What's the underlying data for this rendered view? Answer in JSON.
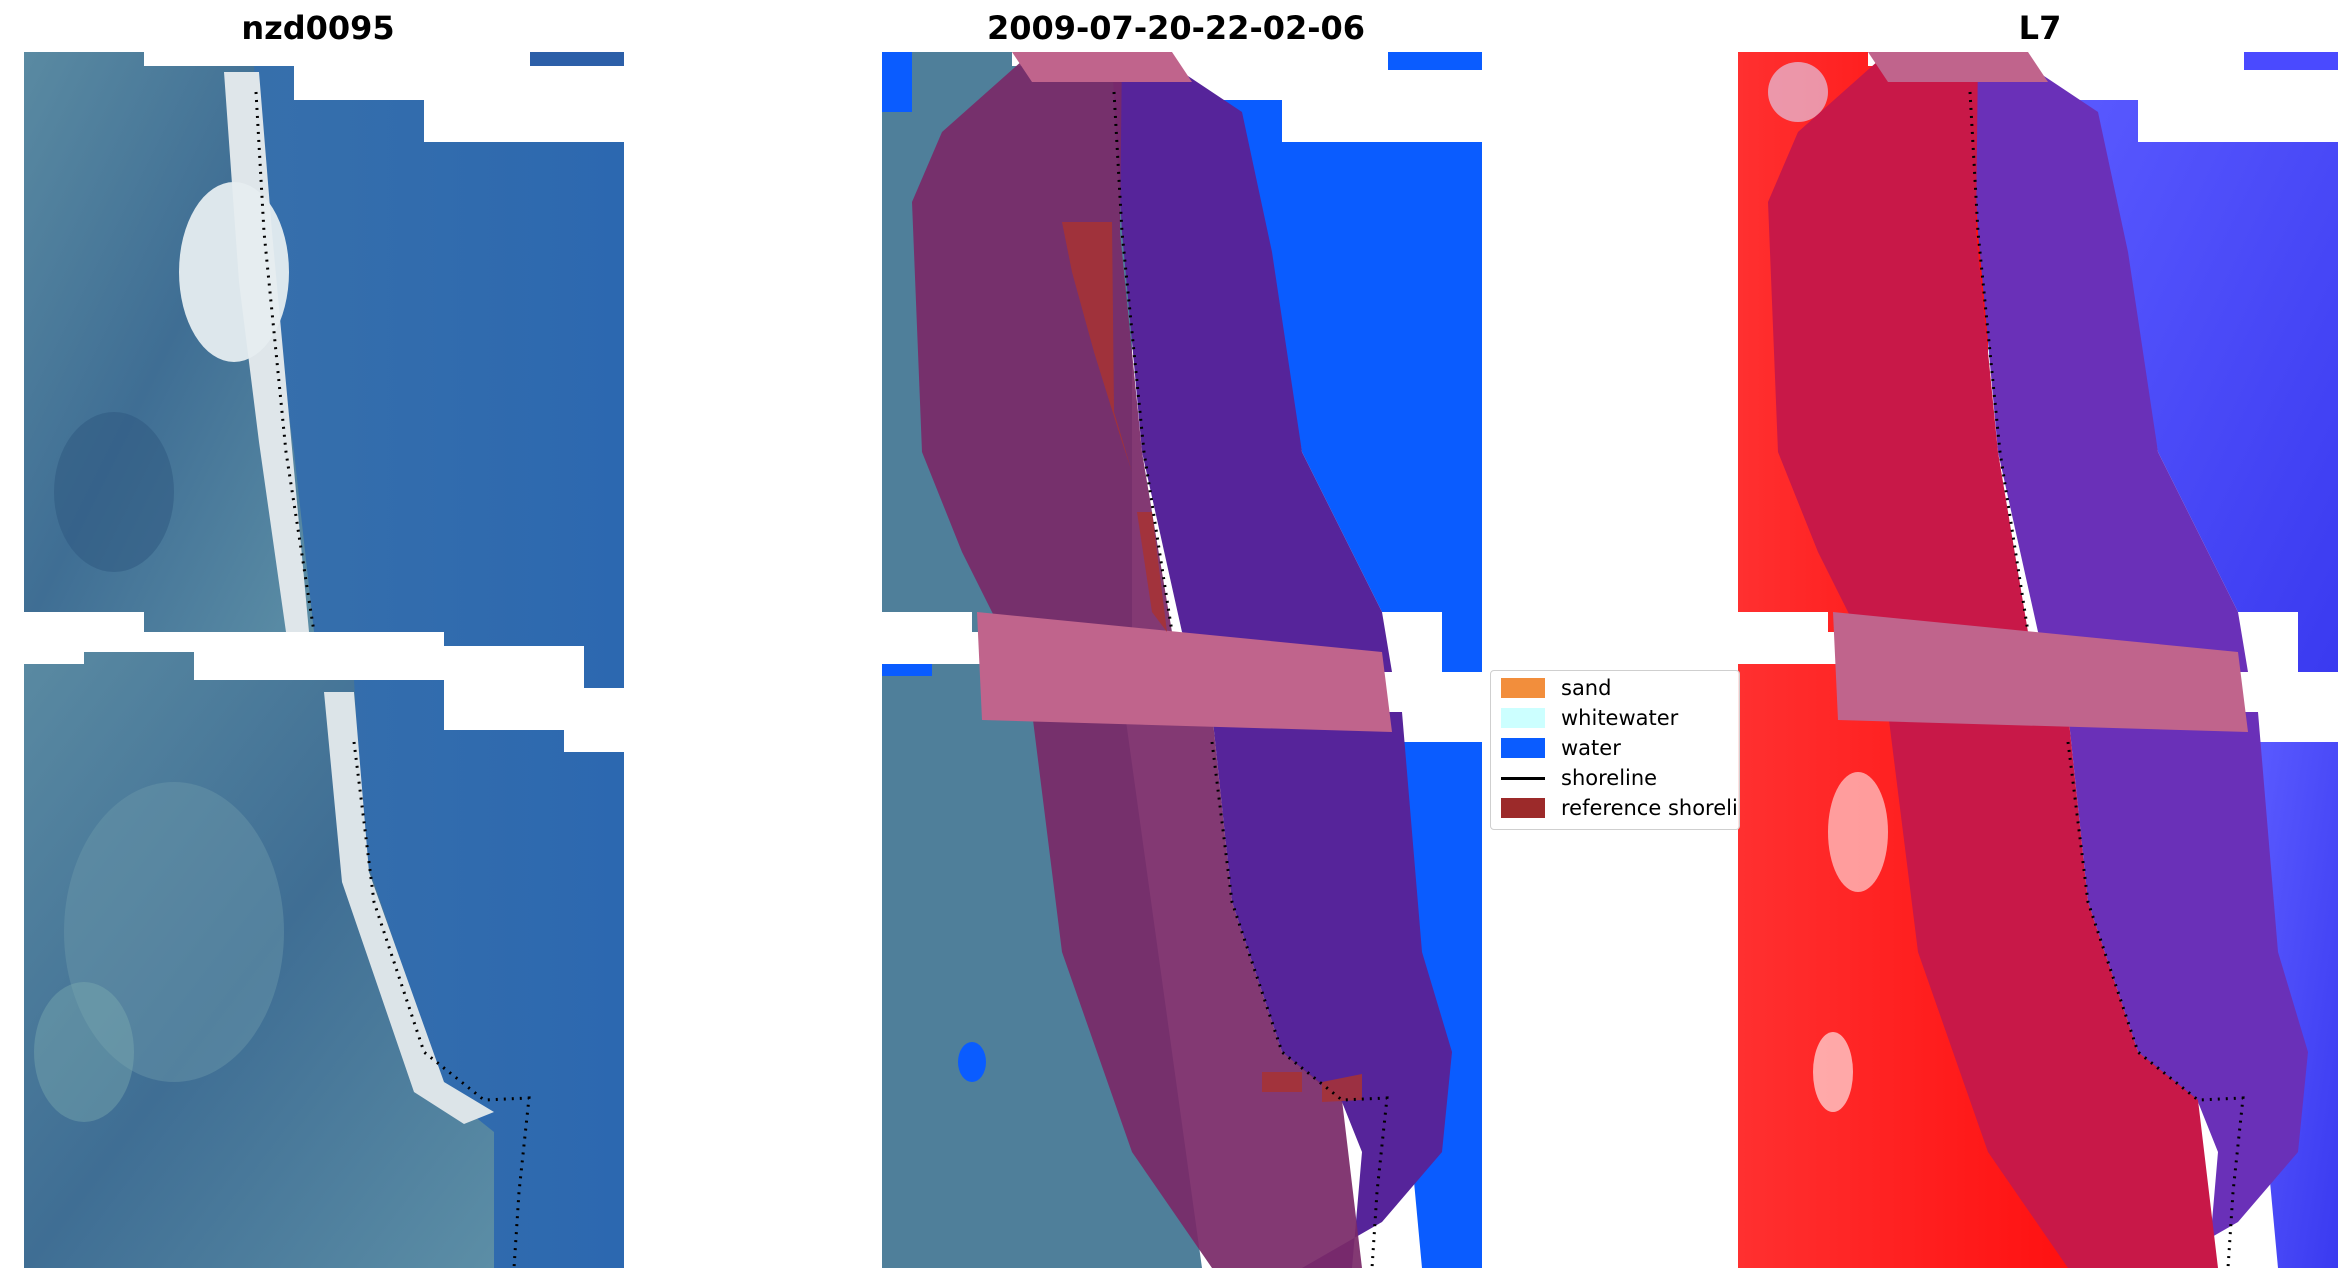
{
  "titles": {
    "left": "nzd0095",
    "center": "2009-07-20-22-02-06",
    "right": "L7"
  },
  "legend": {
    "items": [
      {
        "label": "sand",
        "kind": "patch",
        "color": "#f28e3c"
      },
      {
        "label": "whitewater",
        "kind": "patch",
        "color": "#ccffff"
      },
      {
        "label": "water",
        "kind": "patch",
        "color": "#0a5cff"
      },
      {
        "label": "shoreline",
        "kind": "line",
        "color": "#000000"
      },
      {
        "label": "reference shoreline",
        "kind": "patch",
        "color": "#9c2a2a"
      }
    ]
  },
  "colors": {
    "water_rgb": "#2f6eb0",
    "land_rgb": "#4c7896",
    "beach": "#e8eef2",
    "classified_water": "#0a5cff",
    "buffer": "#5a2696",
    "land_overlay": "#7a2a66",
    "buffer_pink": "#c0648c",
    "reference_shoreline": "#a83232",
    "ndwi_land": "#ff2020",
    "ndwi_water": "#4a4aff",
    "ndwi_buffer_land": "#c01848",
    "ndwi_buffer_water": "#6a30b8"
  }
}
